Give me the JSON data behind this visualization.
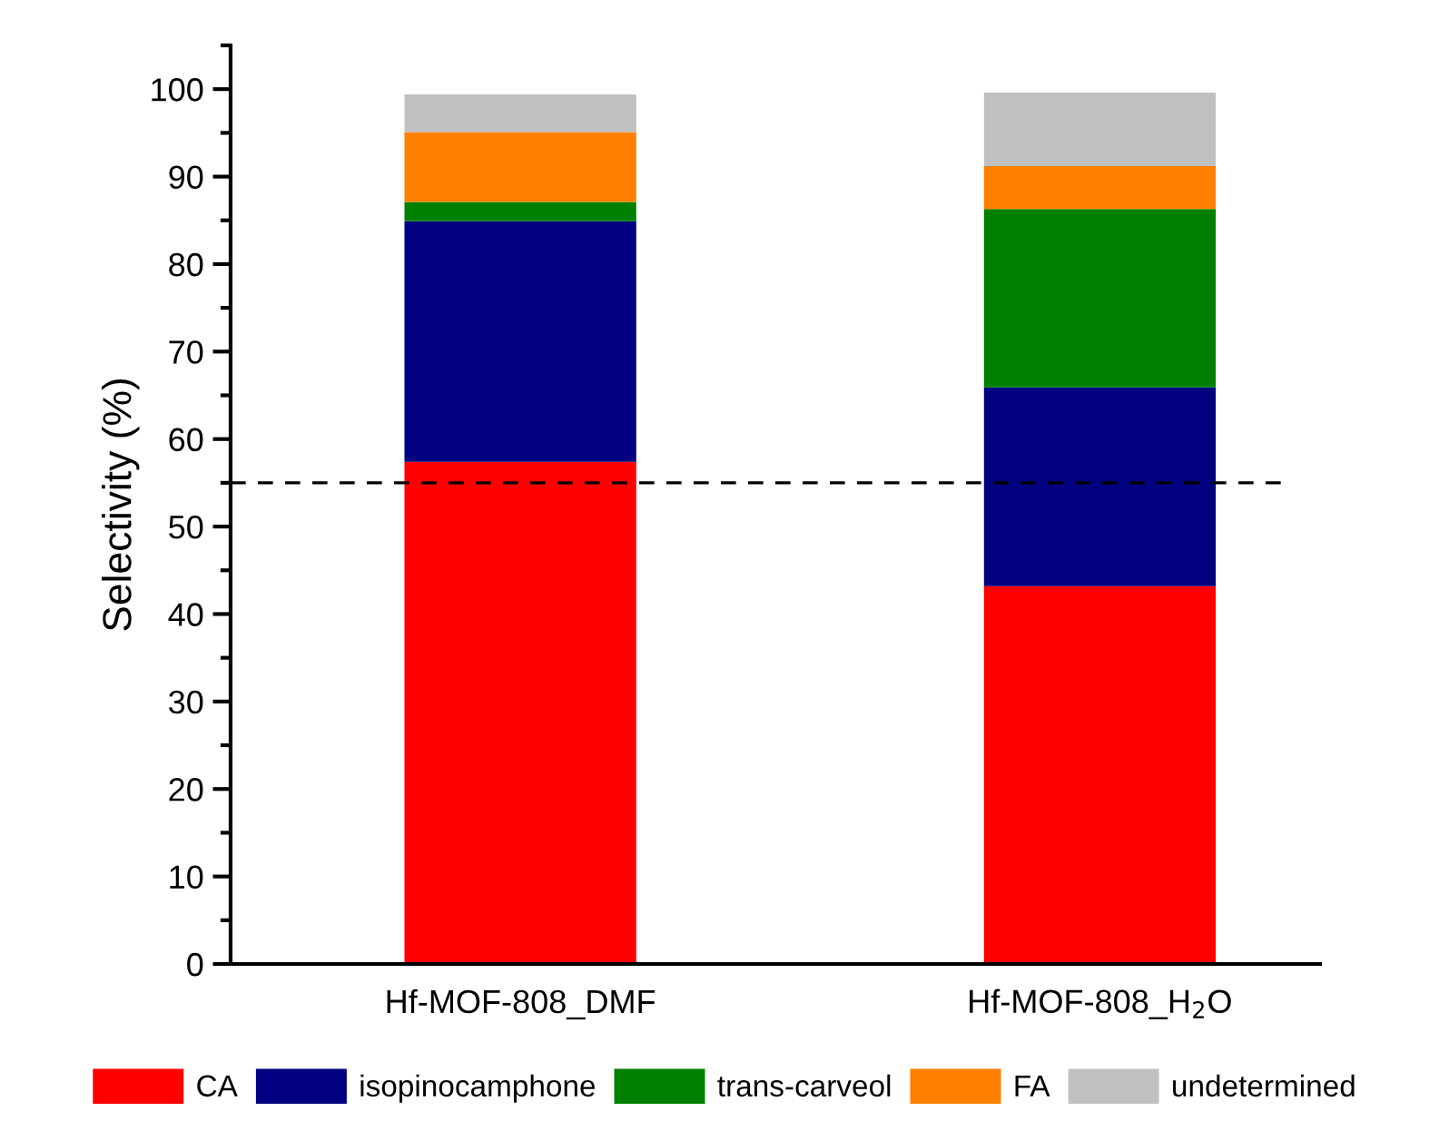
{
  "chart_data": {
    "type": "bar",
    "stacked": true,
    "ylabel": "Selectivity (%)",
    "categories": [
      "Hf-MOF-808_DMF",
      "Hf-MOF-808_H$_{2}$O"
    ],
    "series": [
      {
        "name": "CA",
        "color": "#ff0000",
        "values": [
          57.4,
          43.2
        ]
      },
      {
        "name": "isopinocamphone",
        "color": "#000080",
        "values": [
          27.5,
          22.7
        ]
      },
      {
        "name": "trans-carveol",
        "color": "#008000",
        "values": [
          2.2,
          20.4
        ]
      },
      {
        "name": "FA",
        "color": "#ff8000",
        "values": [
          8.0,
          4.9
        ]
      },
      {
        "name": "undetermined",
        "color": "#c0c0c0",
        "values": [
          4.3,
          8.4
        ]
      }
    ],
    "ylim": [
      0,
      105
    ],
    "yticks": [
      0,
      10,
      20,
      30,
      40,
      50,
      60,
      70,
      80,
      90,
      100
    ],
    "grid": false,
    "legend": "bottom",
    "ref_lines": [
      {
        "axis": "y",
        "value": 55,
        "color": "#000000",
        "line_style": "dashed"
      }
    ]
  }
}
